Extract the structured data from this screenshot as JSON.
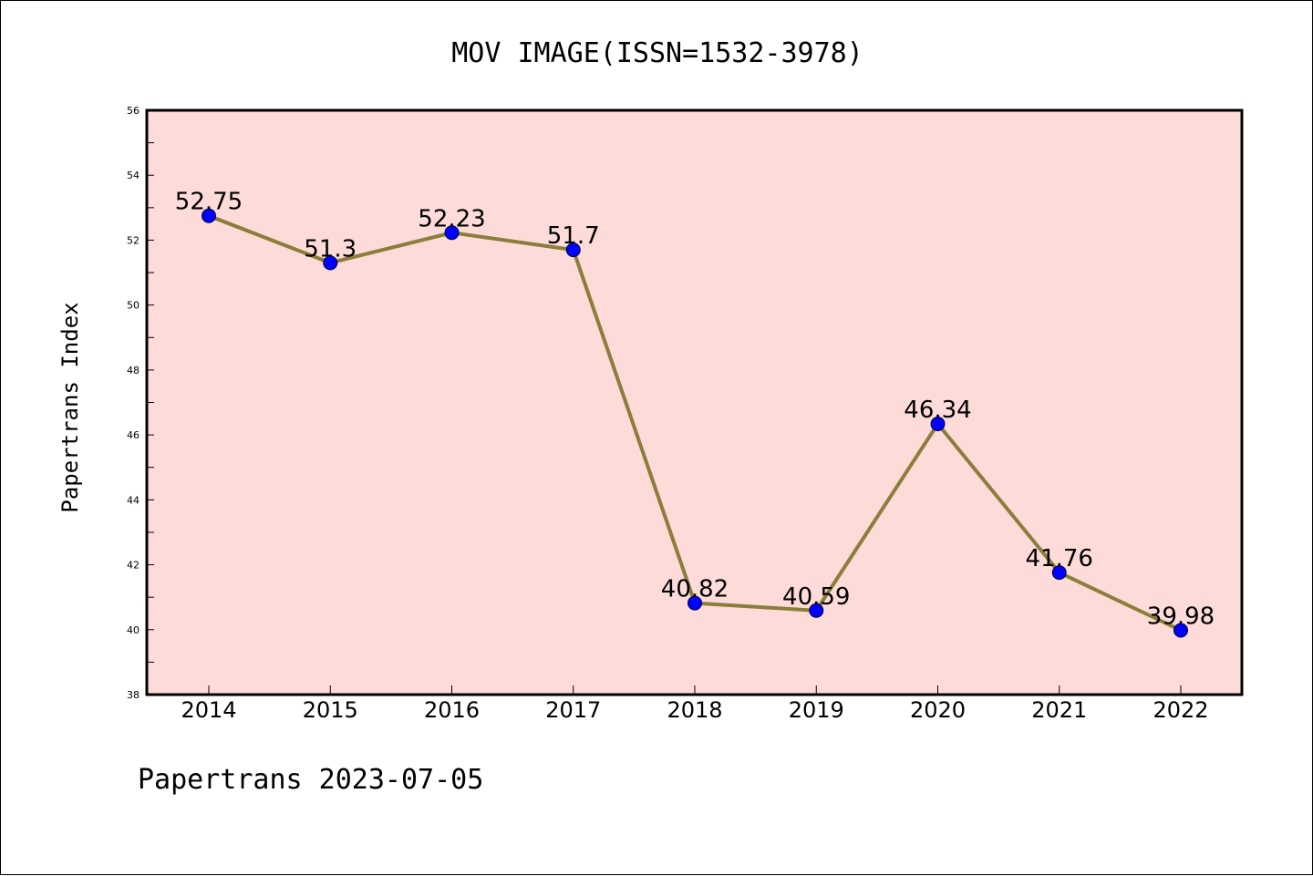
{
  "chart_data": {
    "type": "line",
    "title": "MOV IMAGE(ISSN=1532-3978)",
    "ylabel": "Papertrans Index",
    "xlabel": "",
    "footer": "Papertrans 2023-07-05",
    "categories": [
      "2014",
      "2015",
      "2016",
      "2017",
      "2018",
      "2019",
      "2020",
      "2021",
      "2022"
    ],
    "values": [
      52.75,
      51.3,
      52.23,
      51.7,
      40.82,
      40.59,
      46.34,
      41.76,
      39.98
    ],
    "value_labels": [
      "52.75",
      "51.3",
      "52.23",
      "51.7",
      "40.82",
      "40.59",
      "46.34",
      "41.76",
      "39.98"
    ],
    "ylim": [
      38,
      56
    ],
    "yticks": [
      "38",
      "40",
      "42",
      "44",
      "46",
      "48",
      "50",
      "52",
      "54",
      "56"
    ],
    "grid": false,
    "legend": "none",
    "colors": {
      "plot_background": "#fddbd8",
      "line": "#8b7d3a",
      "marker": "#0000ff",
      "axis": "#000000"
    }
  }
}
